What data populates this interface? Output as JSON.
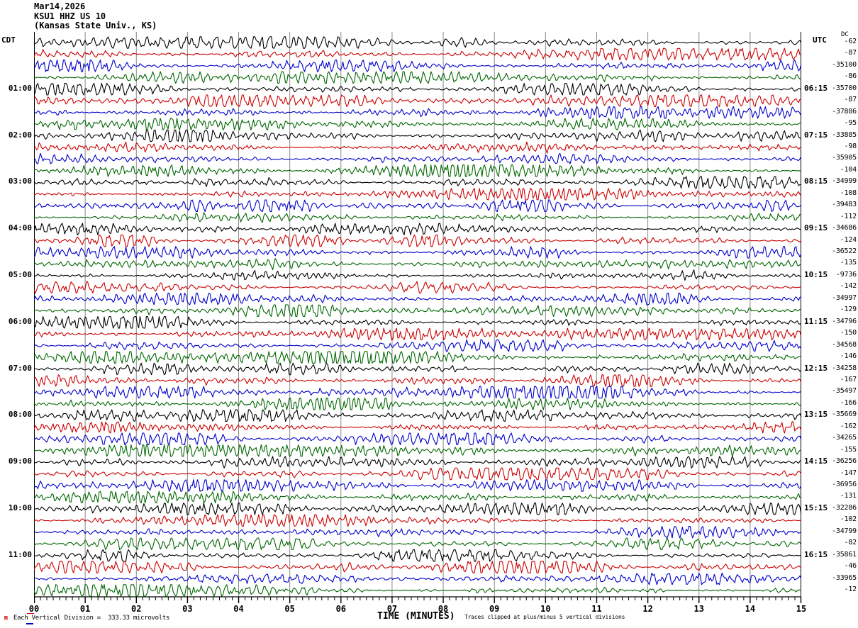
{
  "header": {
    "date": "Mar14,2026",
    "station": "KSU1 HHZ US 10",
    "location": "(Kansas State Univ., KS)",
    "left_timezone": "CDT",
    "right_timezone": "UTC",
    "dc_column_label": "DC"
  },
  "x_axis": {
    "title": "TIME (MINUTES)",
    "tick_labels": [
      "00",
      "01",
      "02",
      "03",
      "04",
      "05",
      "06",
      "07",
      "08",
      "09",
      "10",
      "11",
      "12",
      "13",
      "14",
      "15"
    ]
  },
  "footer": {
    "scale_note": "Each Vertical Division =  333.33 microvolts",
    "clip_note": "Traces clipped at plus/minus 5 vertical divisions",
    "left_mark": "M"
  },
  "traces": {
    "count": 48,
    "rows_per_hour": 4,
    "minutes_per_row": 15,
    "color_cycle": [
      "#000000",
      "#cc0000",
      "#0000cc",
      "#006600"
    ],
    "label_start_row": 4,
    "label_row_step": 4,
    "left_time_labels": [
      "01:00",
      "02:00",
      "03:00",
      "04:00",
      "05:00",
      "06:00",
      "07:00",
      "08:00",
      "09:00",
      "10:00",
      "11:00"
    ],
    "right_time_labels": [
      "06:15",
      "07:15",
      "08:15",
      "09:15",
      "10:15",
      "11:15",
      "12:15",
      "13:15",
      "14:15",
      "15:15",
      "16:15"
    ],
    "dc_values": [
      -62,
      -87,
      -35100,
      -86,
      -35700,
      -87,
      -37886,
      -95,
      -33885,
      -98,
      -35905,
      -104,
      -34999,
      -108,
      -39483,
      -112,
      -34686,
      -124,
      -36522,
      -135,
      -9736,
      -142,
      -34997,
      -129,
      -34796,
      -150,
      -34568,
      -146,
      -34258,
      -167,
      -35497,
      -166,
      -35669,
      -162,
      -34265,
      -155,
      -36256,
      -147,
      -36956,
      -131,
      -32286,
      -102,
      -34799,
      -82,
      -35861,
      -46,
      -33965,
      -12
    ]
  },
  "chart_data": {
    "type": "line",
    "title": "KSU1 HHZ US 10 helicorder — Mar14,2026 — (Kansas State Univ., KS)",
    "xlabel": "TIME (MINUTES)",
    "x_range_minutes": [
      0,
      15
    ],
    "x_tick_labels": [
      "00",
      "01",
      "02",
      "03",
      "04",
      "05",
      "06",
      "07",
      "08",
      "09",
      "10",
      "11",
      "12",
      "13",
      "14",
      "15"
    ],
    "num_traces": 48,
    "traces_per_hour": 4,
    "trace_duration_minutes": 15,
    "left_axis_times_cdt": [
      "01:00",
      "02:00",
      "03:00",
      "04:00",
      "05:00",
      "06:00",
      "07:00",
      "08:00",
      "09:00",
      "10:00",
      "11:00"
    ],
    "right_axis_times_utc": [
      "06:15",
      "07:15",
      "08:15",
      "09:15",
      "10:15",
      "11:15",
      "12:15",
      "13:15",
      "14:15",
      "15:15",
      "16:15"
    ],
    "dc_offsets_per_trace": [
      -62,
      -87,
      -35100,
      -86,
      -35700,
      -87,
      -37886,
      -95,
      -33885,
      -98,
      -35905,
      -104,
      -34999,
      -108,
      -39483,
      -112,
      -34686,
      -124,
      -36522,
      -135,
      -9736,
      -142,
      -34997,
      -129,
      -34796,
      -150,
      -34568,
      -146,
      -34258,
      -167,
      -35497,
      -166,
      -35669,
      -162,
      -34265,
      -155,
      -36256,
      -147,
      -36956,
      -131,
      -32286,
      -102,
      -34799,
      -82,
      -35861,
      -46,
      -33965,
      -12
    ],
    "color_cycle": [
      "#000000",
      "#cc0000",
      "#0000cc",
      "#006600"
    ],
    "amplitude_scale": "Each Vertical Division = 333.33 microvolts",
    "clipping": "Traces clipped at plus/minus 5 vertical divisions",
    "grid": "vertical lines every 1 minute; tick marks every 7.5 seconds",
    "waveform_note": "Continuous ambient seismic noise (microseism); individual sample values are not resolvable from the raster image"
  }
}
